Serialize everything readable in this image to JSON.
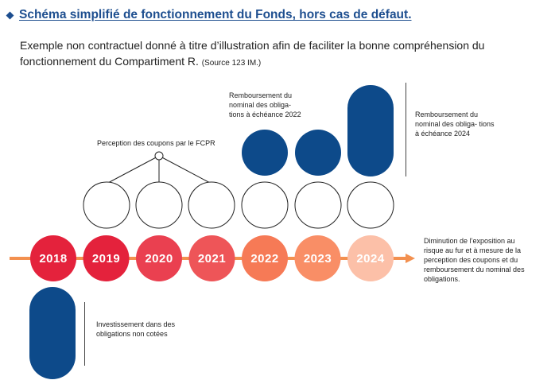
{
  "header": {
    "title": "Schéma simplifié de fonctionnement du Fonds, hors cas de défaut."
  },
  "intro": {
    "text": "Exemple non contractuel donné à titre d’illustration afin de faciliter la bonne compréhension du fonctionnement du Compartiment R.",
    "source": "(Source 123 IM.)"
  },
  "labels": {
    "coupons": "Perception des coupons par le FCPR",
    "repay_2022": "Remboursement du nominal des obliga- tions à échéance 2022",
    "repay_2024": "Remboursement du nominal des obliga- tions à échéance 2024",
    "exposure": "Diminution de l’exposition au risque au fur et à mesure de la perception des coupons et du remboursement du nominal des obligations.",
    "investment": "Investissement dans des obligations non cotées"
  },
  "timeline": {
    "years": [
      {
        "label": "2018",
        "color": "#e4223c"
      },
      {
        "label": "2019",
        "color": "#e4223c"
      },
      {
        "label": "2020",
        "color": "#ea4050"
      },
      {
        "label": "2021",
        "color": "#ee5558"
      },
      {
        "label": "2022",
        "color": "#f67a56"
      },
      {
        "label": "2023",
        "color": "#f98e66"
      },
      {
        "label": "2024",
        "color": "#fcc0a8"
      }
    ],
    "arrow_color": "#f3904f"
  },
  "colors": {
    "navy": "#0d4a8a",
    "title": "#1d4e8f"
  }
}
